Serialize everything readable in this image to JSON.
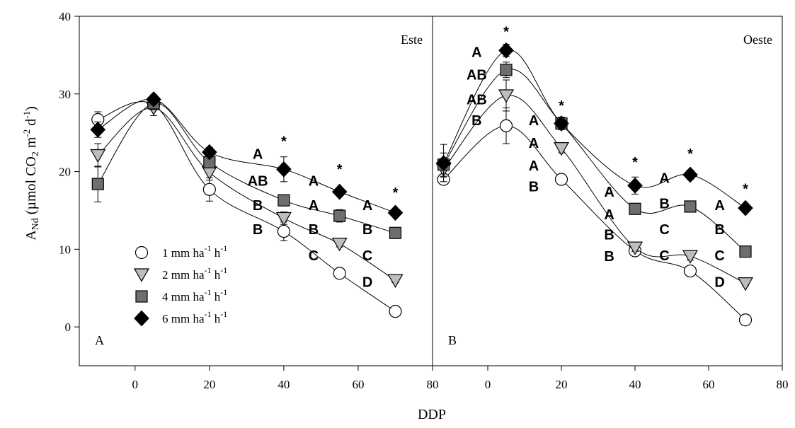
{
  "chart_data": {
    "type": "line",
    "xlabel": "DDP",
    "ylabel": {
      "base": "A",
      "sub1": "Nd",
      "rest1": " (µmol CO",
      "sub2": "2",
      "rest2": " m",
      "sup1": "-2",
      "rest3": " d",
      "sup2": "-1",
      "rest4": ")"
    },
    "ylim": [
      -5,
      40
    ],
    "yticks": [
      "0",
      "10",
      "20",
      "30",
      "40"
    ],
    "yticks_values": [
      0,
      10,
      20,
      30,
      40
    ],
    "xlim": [
      -15,
      80
    ],
    "xticks": [
      "0",
      "20",
      "40",
      "60",
      "80"
    ],
    "xticks_values": [
      0,
      20,
      40,
      60,
      80
    ],
    "legend": {
      "placement": "lower-left of panel A",
      "entries": [
        {
          "series": 0,
          "pre": "1 mm ha",
          "sup1": "-1",
          "mid": " h",
          "sup2": "-1"
        },
        {
          "series": 1,
          "pre": "2 mm ha",
          "sup1": "-1",
          "mid": " h",
          "sup2": "-1"
        },
        {
          "series": 2,
          "pre": "4 mm ha",
          "sup1": "-1",
          "mid": " h",
          "sup2": "-1"
        },
        {
          "series": 3,
          "pre": "6 mm ha",
          "sup1": "-1",
          "mid": " h",
          "sup2": "-1"
        }
      ]
    },
    "series_style": [
      {
        "marker": "circle",
        "fill": "#ffffff"
      },
      {
        "marker": "triangle-down",
        "fill": "#bdbdbd"
      },
      {
        "marker": "square",
        "fill": "#6e6e6e"
      },
      {
        "marker": "diamond",
        "fill": "#000000"
      }
    ],
    "panels": [
      {
        "label": "A",
        "title": "Este",
        "x": [
          -10,
          5,
          20,
          40,
          55,
          70
        ],
        "series": [
          {
            "values": [
              26.7,
              28.6,
              17.7,
              12.3,
              6.9,
              2.0
            ],
            "errors": [
              1.0,
              0.6,
              1.5,
              1.2,
              0.4,
              0.3
            ]
          },
          {
            "values": [
              22.1,
              28.2,
              19.9,
              14.0,
              10.7,
              6.0
            ],
            "errors": [
              1.5,
              1.0,
              1.0,
              0.8,
              0.4,
              0.3
            ]
          },
          {
            "values": [
              18.4,
              28.8,
              21.2,
              16.3,
              14.3,
              12.1
            ],
            "errors": [
              2.3,
              0.8,
              0.7,
              0.6,
              0.8,
              0.4
            ]
          },
          {
            "values": [
              25.4,
              29.3,
              22.5,
              20.3,
              17.4,
              14.7
            ],
            "errors": [
              1.0,
              0.6,
              0.6,
              1.6,
              0.5,
              0.3
            ]
          }
        ],
        "letters": [
          {
            "x": 33,
            "y": 22.3,
            "text": "A"
          },
          {
            "x": 33,
            "y": 18.8,
            "text": "AB"
          },
          {
            "x": 33,
            "y": 15.7,
            "text": "B"
          },
          {
            "x": 33,
            "y": 12.6,
            "text": "B"
          },
          {
            "x": 48,
            "y": 18.8,
            "text": "A"
          },
          {
            "x": 48,
            "y": 15.7,
            "text": "A"
          },
          {
            "x": 48,
            "y": 12.6,
            "text": "B"
          },
          {
            "x": 48,
            "y": 9.2,
            "text": "C"
          },
          {
            "x": 62.5,
            "y": 15.7,
            "text": "A"
          },
          {
            "x": 62.5,
            "y": 12.6,
            "text": "B"
          },
          {
            "x": 62.5,
            "y": 9.2,
            "text": "C"
          },
          {
            "x": 62.5,
            "y": 5.8,
            "text": "D"
          }
        ],
        "stars": [
          {
            "x": 40,
            "y": 24.2
          },
          {
            "x": 55,
            "y": 20.6
          },
          {
            "x": 70,
            "y": 17.6
          }
        ]
      },
      {
        "label": "B",
        "title": "Oeste",
        "x": [
          -12,
          5,
          20,
          40,
          55,
          70
        ],
        "series": [
          {
            "values": [
              19.0,
              25.9,
              19.0,
              9.8,
              7.2,
              0.9
            ],
            "errors": [
              0.5,
              2.3,
              0.6,
              0.5,
              0.5,
              0.3
            ]
          },
          {
            "values": [
              20.3,
              29.8,
              23.0,
              10.2,
              9.1,
              5.6
            ],
            "errors": [
              1.0,
              2.0,
              0.6,
              0.5,
              0.5,
              0.3
            ]
          },
          {
            "values": [
              20.9,
              33.1,
              26.2,
              15.2,
              15.5,
              9.7
            ],
            "errors": [
              1.5,
              1.0,
              0.6,
              0.4,
              0.4,
              0.3
            ]
          },
          {
            "values": [
              21.1,
              35.6,
              26.2,
              18.2,
              19.6,
              15.3
            ],
            "errors": [
              2.4,
              0.8,
              0.8,
              1.1,
              0.6,
              0.4
            ]
          }
        ],
        "letters": [
          {
            "x": -3,
            "y": 35.4,
            "text": "A"
          },
          {
            "x": -3,
            "y": 32.5,
            "text": "AB"
          },
          {
            "x": -3,
            "y": 29.3,
            "text": "AB"
          },
          {
            "x": -3,
            "y": 26.6,
            "text": "B"
          },
          {
            "x": 12.5,
            "y": 26.6,
            "text": "A"
          },
          {
            "x": 12.5,
            "y": 23.7,
            "text": "A"
          },
          {
            "x": 12.5,
            "y": 20.8,
            "text": "A"
          },
          {
            "x": 12.5,
            "y": 18.1,
            "text": "B"
          },
          {
            "x": 33,
            "y": 17.4,
            "text": "A"
          },
          {
            "x": 33,
            "y": 14.5,
            "text": "A"
          },
          {
            "x": 33,
            "y": 11.9,
            "text": "B"
          },
          {
            "x": 33,
            "y": 9.1,
            "text": "B"
          },
          {
            "x": 48,
            "y": 19.2,
            "text": "A"
          },
          {
            "x": 48,
            "y": 15.9,
            "text": "B"
          },
          {
            "x": 48,
            "y": 12.6,
            "text": "C"
          },
          {
            "x": 48,
            "y": 9.2,
            "text": "C"
          },
          {
            "x": 63,
            "y": 15.7,
            "text": "A"
          },
          {
            "x": 63,
            "y": 12.6,
            "text": "B"
          },
          {
            "x": 63,
            "y": 9.2,
            "text": "C"
          },
          {
            "x": 63,
            "y": 5.8,
            "text": "D"
          }
        ],
        "stars": [
          {
            "x": 5,
            "y": 38.3
          },
          {
            "x": 20,
            "y": 28.8
          },
          {
            "x": 40,
            "y": 21.5
          },
          {
            "x": 55,
            "y": 22.6
          },
          {
            "x": 70,
            "y": 18.1
          }
        ]
      }
    ]
  }
}
